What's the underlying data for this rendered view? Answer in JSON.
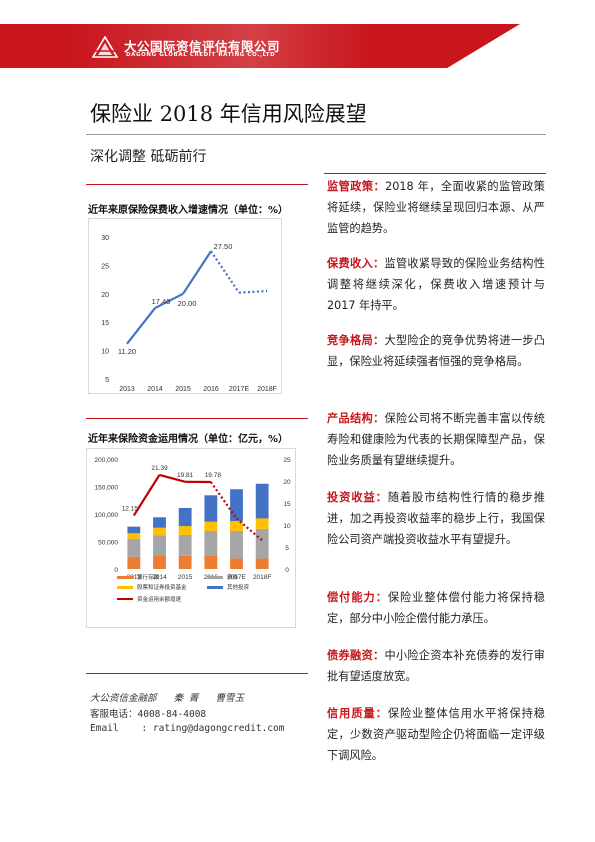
{
  "header": {
    "company_cn": "大公国际资信评估有限公司",
    "company_en": "DAGONG GLOBAL CREDIT RATING CO.,LTD"
  },
  "title": "保险业 2018 年信用风险展望",
  "subtitle": "深化调整  砥砺前行",
  "charts": {
    "chart1_title": "近年来原保险保费收入增速情况（单位：%）",
    "chart2_title": "近年来保险资金运用情况（单位：亿元，%）"
  },
  "chart_data": [
    {
      "type": "line",
      "x": [
        "2013",
        "2014",
        "2015",
        "2016",
        "2017E",
        "2018F"
      ],
      "values": [
        11.2,
        17.49,
        20.0,
        27.5,
        20.2,
        20.5
      ],
      "labels": [
        "11.20",
        "17.49",
        "20.00",
        "27.50",
        "",
        ""
      ],
      "ylim": [
        5,
        30
      ],
      "yticks": [
        "5",
        "10",
        "15",
        "20",
        "25",
        "30"
      ],
      "estimate_from_index": 3,
      "color": "#4472c4"
    },
    {
      "type": "bar",
      "categories": [
        "2013",
        "2014",
        "2015",
        "2016",
        "2017E",
        "2018F"
      ],
      "series": [
        {
          "name": "银行存款",
          "color": "#ed7d31",
          "values": [
            22000,
            25000,
            24000,
            25000,
            19000,
            19000
          ]
        },
        {
          "name": "债券",
          "color": "#a5a5a5",
          "values": [
            33000,
            36000,
            38000,
            44000,
            50000,
            54000
          ]
        },
        {
          "name": "股票和证券投资基金",
          "color": "#ffc000",
          "values": [
            10000,
            14000,
            16000,
            17000,
            18000,
            19000
          ]
        },
        {
          "name": "其他投资",
          "color": "#4472c4",
          "values": [
            12000,
            19000,
            33000,
            48000,
            58000,
            63000
          ]
        }
      ],
      "line": {
        "name": "资金运用余额增速",
        "color": "#c00000",
        "values": [
          12.15,
          21.39,
          19.81,
          19.78,
          11.5,
          6.5
        ],
        "labels": [
          "12.15",
          "21.39",
          "19.81",
          "19.78",
          "",
          ""
        ],
        "estimate_from_index": 3
      },
      "ylim_left": [
        0,
        200000
      ],
      "yticks_left": [
        "0",
        "50,000",
        "100,000",
        "150,000",
        "200,000"
      ],
      "ylim_right": [
        0,
        25
      ],
      "yticks_right": [
        "0",
        "5",
        "10",
        "15",
        "20",
        "25"
      ]
    }
  ],
  "contact": {
    "line1": "大公资信金融部   秦 菁   曹雪玉",
    "line2": "客服电话：4008-84-4008",
    "line3": "Email    : rating@dagongcredit.com"
  },
  "sections": [
    {
      "key": "监管政策：",
      "text": "2018 年，全面收紧的监管政策将延续，保险业将继续呈现回归本源、从严监管的趋势。"
    },
    {
      "key": "保费收入：",
      "text": "监管收紧导致的保险业务结构性调整将继续深化，保费收入增速预计与 2017 年持平。"
    },
    {
      "key": "竞争格局：",
      "text": "大型险企的竞争优势将进一步凸显，保险业将延续强者恒强的竞争格局。"
    },
    {
      "key": "产品结构：",
      "text": "保险公司将不断完善丰富以传统寿险和健康险为代表的长期保障型产品，保险业务质量有望继续提升。"
    },
    {
      "key": "投资收益：",
      "text": "随着股市结构性行情的稳步推进，加之再投资收益率的稳步上行，我国保险公司资产端投资收益水平有望提升。"
    },
    {
      "key": "偿付能力：",
      "text": "保险业整体偿付能力将保持稳定，部分中小险企偿付能力承压。"
    },
    {
      "key": "债券融资：",
      "text": "中小险企资本补充债券的发行审批有望适度放宽。"
    },
    {
      "key": "信用质量：",
      "text": "保险业整体信用水平将保持稳定，少数资产驱动型险企仍将面临一定评级下调风险。"
    }
  ]
}
